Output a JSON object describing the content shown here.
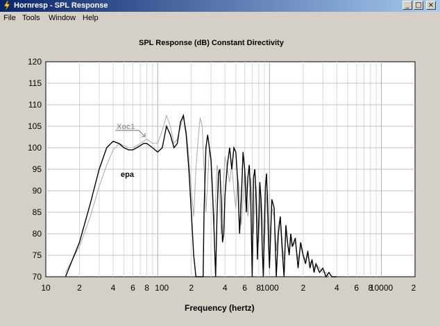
{
  "window": {
    "title": "Hornresp - SPL Response",
    "minimize_glyph": "_",
    "restore_glyph": "□",
    "close_glyph": "×"
  },
  "menu": [
    "File",
    "Tools",
    "Window",
    "Help"
  ],
  "chart_data": {
    "type": "line",
    "title": "SPL Response (dB)   Constant Directivity",
    "xlabel": "Frequency (hertz)",
    "ylabel": "",
    "x_scale": "log",
    "xlim": [
      10,
      20000
    ],
    "ylim": [
      70,
      120
    ],
    "x_tick_labels": [
      "10",
      "2",
      "4",
      "6",
      "8",
      "100",
      "2",
      "4",
      "6",
      "8",
      "1000",
      "2",
      "4",
      "6",
      "8",
      "10000",
      "2"
    ],
    "y_ticks": [
      70,
      75,
      80,
      85,
      90,
      95,
      100,
      105,
      110,
      115,
      120
    ],
    "grid": true,
    "annotations": [
      {
        "text": "Xoc1",
        "color": "#a09898"
      },
      {
        "text": "epa",
        "color": "#000000"
      }
    ],
    "series": [
      {
        "color": "#000000",
        "x": [
          15,
          20,
          25,
          30,
          35,
          40,
          45,
          50,
          55,
          60,
          65,
          70,
          75,
          80,
          90,
          100,
          110,
          120,
          130,
          140,
          150,
          160,
          170,
          180,
          190,
          200,
          210,
          220,
          230,
          240,
          250,
          255,
          260,
          270,
          280,
          290,
          300,
          310,
          320,
          330,
          340,
          350,
          360,
          370,
          380,
          390,
          400,
          420,
          440,
          460,
          480,
          500,
          520,
          540,
          560,
          580,
          600,
          620,
          640,
          660,
          680,
          700,
          720,
          740,
          760,
          780,
          800,
          820,
          840,
          860,
          880,
          900,
          920,
          940,
          960,
          980,
          1000,
          1050,
          1100,
          1150,
          1200,
          1250,
          1300,
          1350,
          1400,
          1450,
          1500,
          1550,
          1600,
          1700,
          1800,
          1900,
          2000,
          2100,
          2200,
          2300,
          2400,
          2500,
          2600,
          2800,
          3000,
          3200,
          3400,
          3600,
          3800,
          4000
        ],
        "y": [
          70,
          78,
          87,
          95,
          100,
          101.5,
          101,
          100,
          99.5,
          99.5,
          100,
          100.5,
          101,
          101,
          100,
          99,
          100,
          105,
          103,
          100,
          101,
          106,
          107.5,
          103,
          95,
          85,
          75,
          70,
          70,
          70,
          70,
          70,
          85,
          100,
          103,
          100,
          97,
          89,
          80,
          70,
          85,
          94,
          95,
          88,
          78,
          80,
          89,
          96,
          100,
          95,
          100,
          99,
          92,
          80,
          88,
          99,
          95,
          85,
          93,
          96,
          88,
          70,
          93,
          95,
          88,
          74,
          82,
          92,
          88,
          77,
          70,
          82,
          91,
          94,
          87,
          78,
          72,
          88,
          86,
          70,
          80,
          84,
          76,
          70,
          82,
          78,
          75,
          80,
          77,
          79,
          72,
          78,
          75,
          73,
          76,
          72,
          74,
          71,
          73,
          71,
          72,
          70,
          71,
          70,
          70,
          70
        ]
      },
      {
        "color": "#a8a8a8",
        "x": [
          15,
          20,
          25,
          30,
          35,
          40,
          45,
          50,
          55,
          60,
          65,
          70,
          75,
          80,
          90,
          100,
          110,
          120,
          130,
          140,
          150,
          160,
          170,
          180,
          190,
          200,
          210,
          220,
          230,
          240,
          250,
          260,
          270,
          280,
          290,
          300,
          310,
          320,
          330,
          340,
          350,
          360,
          370,
          380,
          390,
          400,
          420,
          440,
          460,
          480,
          500,
          520,
          540,
          560,
          580,
          600,
          620,
          640,
          660,
          680,
          700,
          720,
          740,
          760,
          780,
          800,
          820,
          840,
          860,
          880,
          900,
          920,
          940,
          960,
          980,
          1000,
          1050,
          1100,
          1150,
          1200,
          1250,
          1300,
          1350,
          1400,
          1450,
          1500,
          1550,
          1600,
          1700,
          1800,
          1900,
          2000,
          2100,
          2200,
          2300,
          2400,
          2500,
          2600,
          2800,
          3000,
          3200,
          3400,
          3600,
          3800,
          4000
        ],
        "y": [
          71,
          77,
          84,
          91,
          96,
          99.5,
          101,
          100.5,
          100,
          100,
          100.5,
          101,
          101.5,
          102,
          101,
          101,
          104,
          107.5,
          105,
          101,
          102,
          105,
          107,
          104,
          98,
          90,
          84,
          95,
          102,
          107,
          105,
          95,
          85,
          92,
          100,
          98,
          90,
          82,
          88,
          96,
          94,
          86,
          80,
          86,
          93,
          98,
          95,
          92,
          96,
          90,
          86,
          93,
          90,
          82,
          88,
          95,
          92,
          84,
          88,
          93,
          87,
          80,
          88,
          91,
          84,
          78,
          84,
          89,
          85,
          79,
          76,
          83,
          88,
          90,
          84,
          78,
          86,
          84,
          76,
          82,
          84,
          78,
          74,
          80,
          78,
          76,
          79,
          77,
          78,
          74,
          77,
          75,
          74,
          75,
          73,
          74,
          72,
          73,
          72,
          71,
          71,
          70,
          70,
          70,
          70
        ]
      }
    ]
  }
}
